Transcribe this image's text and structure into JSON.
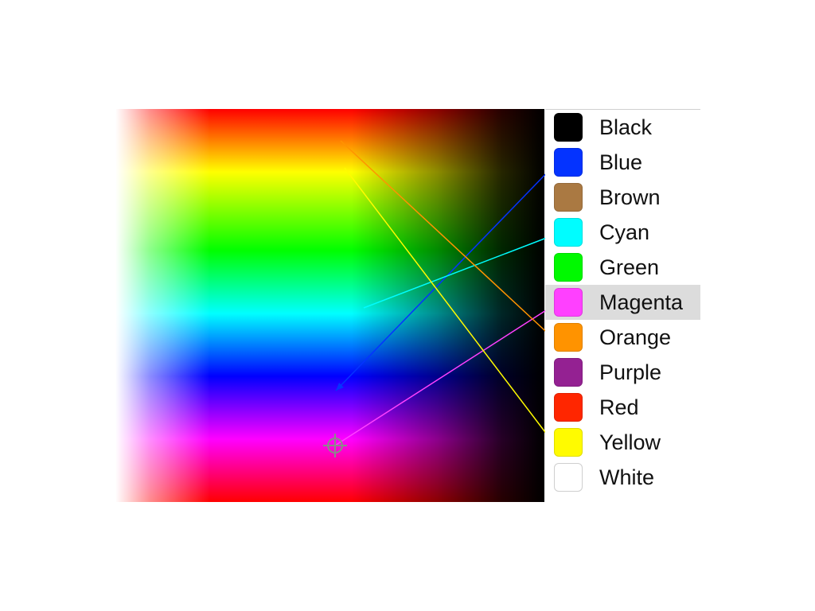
{
  "picker": {
    "selected": "Magenta",
    "colors": [
      {
        "name": "Black",
        "hex": "#000000"
      },
      {
        "name": "Blue",
        "hex": "#0433ff"
      },
      {
        "name": "Brown",
        "hex": "#aa7942"
      },
      {
        "name": "Cyan",
        "hex": "#00fdff"
      },
      {
        "name": "Green",
        "hex": "#00f900"
      },
      {
        "name": "Magenta",
        "hex": "#ff40ff"
      },
      {
        "name": "Orange",
        "hex": "#ff9300"
      },
      {
        "name": "Purple",
        "hex": "#942192"
      },
      {
        "name": "Red",
        "hex": "#ff2600"
      },
      {
        "name": "Yellow",
        "hex": "#fffb00"
      },
      {
        "name": "White",
        "hex": "#ffffff"
      }
    ]
  },
  "icons": {
    "crosshair": "crosshair-icon"
  }
}
